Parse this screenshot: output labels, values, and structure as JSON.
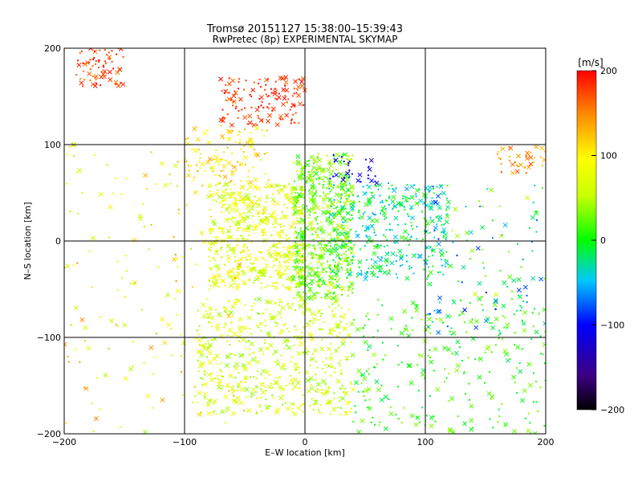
{
  "chart_data": {
    "type": "scatter",
    "title": "Tromsø 20151127 15:38:00–15:39:43",
    "subtitle": "RwPretec (8p) EXPERIMENTAL SKYMAP",
    "xlabel": "E–W location [km]",
    "ylabel": "N–S location [km]",
    "xlim": [
      -200,
      200
    ],
    "ylim": [
      -200,
      200
    ],
    "x_ticks": [
      -200,
      -100,
      0,
      100,
      200
    ],
    "y_ticks": [
      -200,
      -100,
      0,
      100,
      200
    ],
    "x_tick_labels": [
      "−200",
      "−100",
      "0",
      "100",
      "200"
    ],
    "y_tick_labels": [
      "−200",
      "−100",
      "0",
      "100",
      "200"
    ],
    "grid": true,
    "marker_types": [
      "x",
      "dot"
    ],
    "colorbar": {
      "label": "[m/s]",
      "range": [
        -200,
        200
      ],
      "ticks": [
        -200,
        -100,
        0,
        100,
        200
      ],
      "tick_labels": [
        "−200",
        "−100",
        "0",
        "100",
        "200"
      ],
      "colors": [
        "#000000",
        "#3c0080",
        "#0000ff",
        "#00c8ff",
        "#00ff00",
        "#c8ff00",
        "#ffff00",
        "#ff8c00",
        "#ff0000"
      ]
    },
    "clusters": [
      {
        "x": [
          -190,
          -150
        ],
        "y": [
          160,
          200
        ],
        "v": [
          150,
          200
        ]
      },
      {
        "x": [
          -70,
          0
        ],
        "y": [
          120,
          170
        ],
        "v": [
          160,
          200
        ]
      },
      {
        "x": [
          160,
          200
        ],
        "y": [
          70,
          100
        ],
        "v": [
          120,
          180
        ]
      },
      {
        "x": [
          -100,
          -30
        ],
        "y": [
          60,
          120
        ],
        "v": [
          80,
          140
        ]
      },
      {
        "x": [
          -80,
          0
        ],
        "y": [
          -50,
          60
        ],
        "v": [
          40,
          110
        ]
      },
      {
        "x": [
          -10,
          40
        ],
        "y": [
          -60,
          90
        ],
        "v": [
          0,
          60
        ]
      },
      {
        "x": [
          20,
          120
        ],
        "y": [
          -40,
          60
        ],
        "v": [
          -60,
          20
        ]
      },
      {
        "x": [
          20,
          60
        ],
        "y": [
          60,
          90
        ],
        "v": [
          -140,
          -90
        ]
      },
      {
        "x": [
          -90,
          40
        ],
        "y": [
          -180,
          -60
        ],
        "v": [
          30,
          90
        ]
      },
      {
        "x": [
          40,
          200
        ],
        "y": [
          -200,
          -60
        ],
        "v": [
          -20,
          40
        ]
      },
      {
        "x": [
          -200,
          -50
        ],
        "y": [
          -200,
          100
        ],
        "v": [
          40,
          150
        ]
      },
      {
        "x": [
          100,
          200
        ],
        "y": [
          -100,
          60
        ],
        "v": [
          -100,
          60
        ]
      }
    ]
  }
}
